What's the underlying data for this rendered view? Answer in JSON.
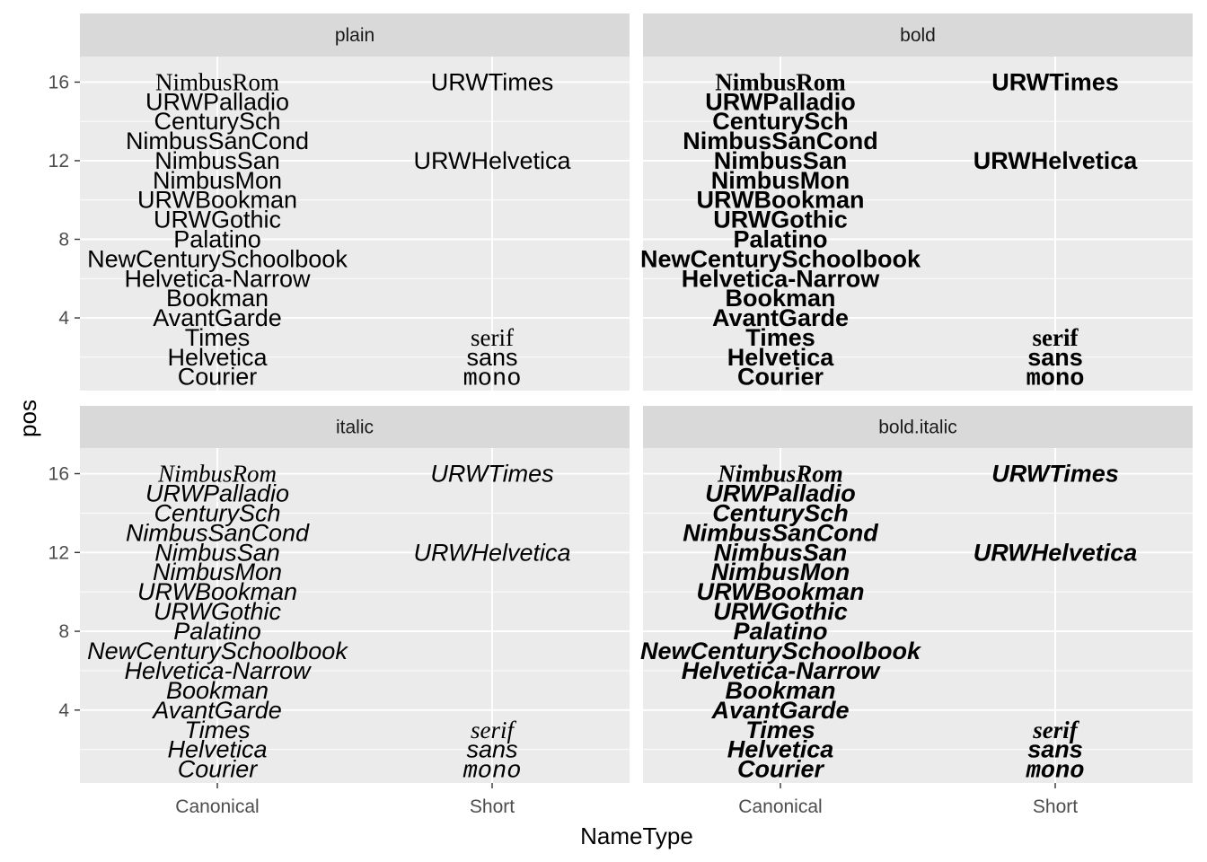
{
  "chart_data": {
    "type": "scatter",
    "chart_kind": "faceted text plot",
    "facets": [
      "plain",
      "bold",
      "italic",
      "bold.italic"
    ],
    "facet_layout": "2x2 grid",
    "xlabel": "NameType",
    "ylabel": "pos",
    "x_categories": [
      "Canonical",
      "Short"
    ],
    "y_ticks": [
      4,
      8,
      12,
      16
    ],
    "ylim": [
      0.3,
      17.3
    ],
    "grid": true,
    "legend": "none",
    "points": [
      {
        "x": "Canonical",
        "y": 16,
        "label": "NimbusRom",
        "family": "serif"
      },
      {
        "x": "Canonical",
        "y": 15,
        "label": "URWPalladio",
        "family": "sans"
      },
      {
        "x": "Canonical",
        "y": 14,
        "label": "CenturySch",
        "family": "sans"
      },
      {
        "x": "Canonical",
        "y": 13,
        "label": "NimbusSanCond",
        "family": "sans"
      },
      {
        "x": "Canonical",
        "y": 12,
        "label": "NimbusSan",
        "family": "sans"
      },
      {
        "x": "Canonical",
        "y": 11,
        "label": "NimbusMon",
        "family": "sans"
      },
      {
        "x": "Canonical",
        "y": 10,
        "label": "URWBookman",
        "family": "sans"
      },
      {
        "x": "Canonical",
        "y": 9,
        "label": "URWGothic",
        "family": "sans"
      },
      {
        "x": "Canonical",
        "y": 8,
        "label": "Palatino",
        "family": "sans"
      },
      {
        "x": "Canonical",
        "y": 7,
        "label": "NewCenturySchoolbook",
        "family": "sans"
      },
      {
        "x": "Canonical",
        "y": 6,
        "label": "Helvetica-Narrow",
        "family": "sans"
      },
      {
        "x": "Canonical",
        "y": 5,
        "label": "Bookman",
        "family": "sans"
      },
      {
        "x": "Canonical",
        "y": 4,
        "label": "AvantGarde",
        "family": "sans"
      },
      {
        "x": "Canonical",
        "y": 3,
        "label": "Times",
        "family": "sans"
      },
      {
        "x": "Canonical",
        "y": 2,
        "label": "Helvetica",
        "family": "sans"
      },
      {
        "x": "Canonical",
        "y": 1,
        "label": "Courier",
        "family": "sans"
      },
      {
        "x": "Short",
        "y": 16,
        "label": "URWTimes",
        "family": "sans"
      },
      {
        "x": "Short",
        "y": 12,
        "label": "URWHelvetica",
        "family": "sans"
      },
      {
        "x": "Short",
        "y": 3,
        "label": "serif",
        "family": "serif"
      },
      {
        "x": "Short",
        "y": 2,
        "label": "sans",
        "family": "sans"
      },
      {
        "x": "Short",
        "y": 1,
        "label": "mono",
        "family": "mono"
      }
    ]
  },
  "colors": {
    "panel_background": "#ebebeb",
    "grid_major": "#ffffff",
    "strip_background": "#d9d9d9",
    "text": "#000000",
    "tick_text": "#4d4d4d"
  }
}
